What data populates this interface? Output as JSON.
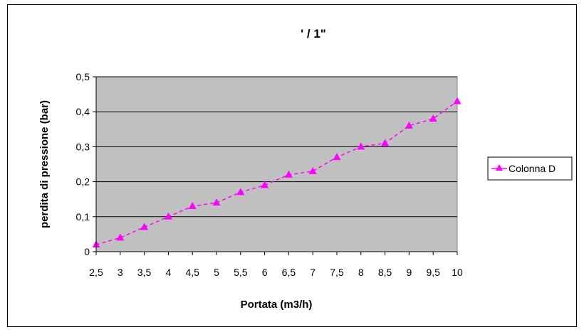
{
  "chart_data": {
    "type": "line",
    "title": "' / 1\"",
    "xlabel": "Portata (m3/h)",
    "ylabel": "perdita di pressione (bar)",
    "categories": [
      "2,5",
      "3",
      "3,5",
      "4",
      "4,5",
      "5",
      "5,5",
      "6",
      "6,5",
      "7",
      "7,5",
      "8",
      "8,5",
      "9",
      "9,5",
      "10"
    ],
    "series": [
      {
        "name": "Colonna D",
        "color": "#ff00ff",
        "marker": "triangle",
        "line_style": "dashed",
        "values": [
          0.02,
          0.04,
          0.07,
          0.1,
          0.13,
          0.14,
          0.17,
          0.19,
          0.22,
          0.23,
          0.27,
          0.3,
          0.31,
          0.36,
          0.38,
          0.43
        ]
      }
    ],
    "yticks": [
      "0",
      "0,1",
      "0,2",
      "0,3",
      "0,4",
      "0,5"
    ],
    "ylim": [
      0,
      0.5
    ],
    "grid": true,
    "plot_background": "#c0c0c0",
    "legend_position": "right"
  }
}
